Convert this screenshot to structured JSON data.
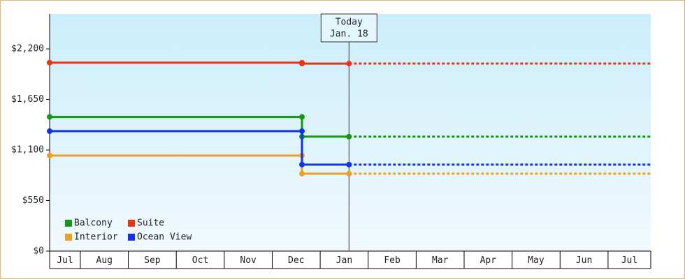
{
  "chart_data": {
    "type": "step-line",
    "x": [
      0.36,
      5.62,
      5.62,
      6.6,
      12.89
    ],
    "xlim": [
      0.36,
      12.89
    ],
    "categories": [
      "Jul",
      "Aug",
      "Sep",
      "Oct",
      "Nov",
      "Dec",
      "Jan",
      "Feb",
      "Mar",
      "Apr",
      "May",
      "Jun",
      "Jul"
    ],
    "ylim": [
      0,
      2580
    ],
    "yticks": [
      {
        "value": 0,
        "label": "$0"
      },
      {
        "value": 550,
        "label": "$550"
      },
      {
        "value": 1100,
        "label": "$1,100"
      },
      {
        "value": 1650,
        "label": "$1,650"
      },
      {
        "value": 2200,
        "label": "$2,200"
      }
    ],
    "today": {
      "x": 6.6,
      "label": "Today",
      "date": "Jan. 18"
    },
    "series": [
      {
        "name": "Balcony",
        "color": "#119911",
        "values": [
          1460,
          1460,
          1245,
          1245,
          1245
        ]
      },
      {
        "name": "Suite",
        "color": "#ee3311",
        "values": [
          2050,
          2050,
          2040,
          2040,
          2040
        ]
      },
      {
        "name": "Interior",
        "color": "#f0a020",
        "values": [
          1040,
          1040,
          842,
          842,
          842
        ]
      },
      {
        "name": "Ocean View",
        "color": "#1133ee",
        "values": [
          1305,
          1305,
          941,
          941,
          941
        ]
      }
    ]
  }
}
